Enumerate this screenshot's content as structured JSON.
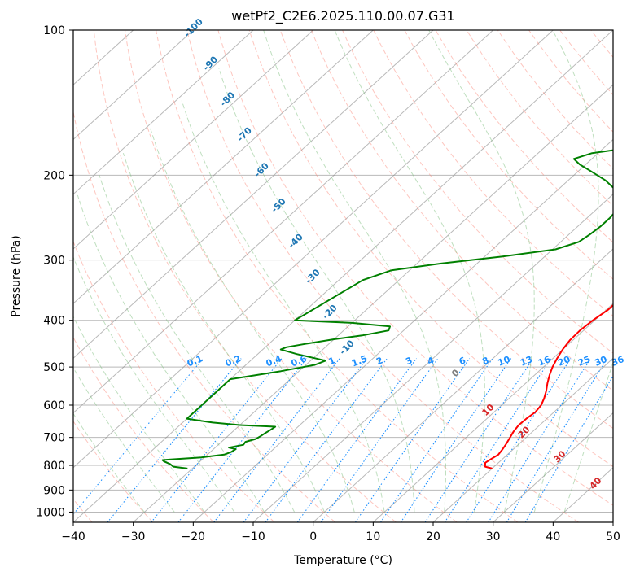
{
  "chart_data": {
    "type": "line",
    "title": "wetPf2_C2E6.2025.110.00.07.G31",
    "xlabel": "Temperature (°C)",
    "ylabel": "Pressure (hPa)",
    "xlim": [
      -40,
      50
    ],
    "ylim": [
      1050,
      100
    ],
    "y_scale": "log",
    "x_ticks": [
      -40,
      -30,
      -20,
      -10,
      0,
      10,
      20,
      30,
      40,
      50
    ],
    "y_ticks": [
      100,
      200,
      300,
      400,
      500,
      600,
      700,
      800,
      900,
      1000
    ],
    "grid": true,
    "colors": {
      "temperature": "#ff0000",
      "dewpoint": "#008000",
      "dry_adiabats": "#fa8072",
      "moist_adiabats": "#7fbf7f",
      "mixing_ratio": "#1e90ff",
      "isotherms": "#808080",
      "dry_label": "#d62728",
      "moist_label": "#1f77b4",
      "mixing_label": "#1e90ff",
      "zero_label": "#808080"
    },
    "mixing_ratio_labels": [
      "0.1",
      "0.2",
      "0.4",
      "0.6",
      "1",
      "1.5",
      "2",
      "3",
      "4",
      "6",
      "8",
      "10",
      "13",
      "16",
      "20",
      "25",
      "30",
      "36"
    ],
    "mixing_ratio_values": [
      0.1,
      0.2,
      0.4,
      0.6,
      1,
      1.5,
      2,
      3,
      4,
      6,
      8,
      10,
      13,
      16,
      20,
      25,
      30,
      36
    ],
    "mixing_ratio_label_pressure": 500,
    "skew_labels": [
      "-100",
      "-90",
      "-80",
      "-70",
      "-60",
      "-50",
      "-40",
      "-30",
      "-20",
      "-10",
      "0",
      "10",
      "20",
      "30",
      "40"
    ],
    "series": [
      {
        "pressure": [
          812,
          805,
          790,
          780,
          760,
          740,
          720,
          700,
          680,
          660,
          640,
          620,
          600,
          580,
          560,
          540,
          520,
          500,
          480,
          460,
          440,
          420,
          400,
          380,
          360,
          340,
          320,
          300,
          280,
          260,
          240,
          225,
          215,
          205,
          195,
          185,
          175,
          165,
          155,
          145,
          135,
          125,
          115,
          108,
          100
        ],
        "values": [
          20.0,
          18.5,
          17.8,
          18.0,
          18.5,
          18.2,
          17.8,
          17.3,
          16.8,
          16.5,
          16.6,
          16.9,
          16.6,
          15.8,
          14.8,
          13.6,
          12.5,
          11.5,
          10.7,
          10.0,
          9.5,
          9.4,
          9.7,
          10.3,
          10.3,
          9.8,
          9.7,
          9.2,
          8.2,
          7.0,
          5.8,
          4.8,
          5.4,
          7.6,
          10.8,
          12.0,
          12.2,
          11.9,
          11.6,
          11.6,
          12.0,
          13.0,
          14.5,
          15.6,
          15.8
        ]
      },
      {
        "pressure": [
          812,
          805,
          795,
          785,
          780,
          778,
          770,
          760,
          750,
          740,
          735,
          725,
          715,
          705,
          695,
          685,
          675,
          665,
          660,
          652,
          640,
          530,
          510,
          495,
          485,
          470,
          460,
          455,
          448,
          438,
          430,
          420,
          412,
          405,
          400,
          330,
          315,
          305,
          295,
          285,
          275,
          265,
          255,
          245,
          235,
          225,
          215,
          205,
          195,
          190,
          185,
          180,
          175,
          170,
          160,
          150,
          140,
          130,
          120,
          110,
          100
        ],
        "values": [
          -30.8,
          -33.5,
          -34.5,
          -36.0,
          -36.5,
          -35.5,
          -30.5,
          -27.2,
          -26.5,
          -26.3,
          -27.7,
          -25.8,
          -26.0,
          -24.8,
          -24.5,
          -24.3,
          -24.0,
          -23.8,
          -30.0,
          -35.0,
          -40.0,
          -40.0,
          -33.0,
          -28.5,
          -27.5,
          -33.5,
          -37.0,
          -36.5,
          -34.0,
          -30.0,
          -26.0,
          -22.5,
          -23.0,
          -30.0,
          -40.0,
          -36.0,
          -33.0,
          -26.0,
          -17.0,
          -9.5,
          -7.0,
          -6.5,
          -6.2,
          -6.2,
          -6.5,
          -7.8,
          -10.2,
          -13.8,
          -18.5,
          -21.0,
          -23.0,
          -21.0,
          -15.0,
          -10.0,
          -7.7,
          -7.0,
          -7.0,
          -6.0,
          -4.5,
          -2.0,
          0.3
        ]
      }
    ]
  }
}
